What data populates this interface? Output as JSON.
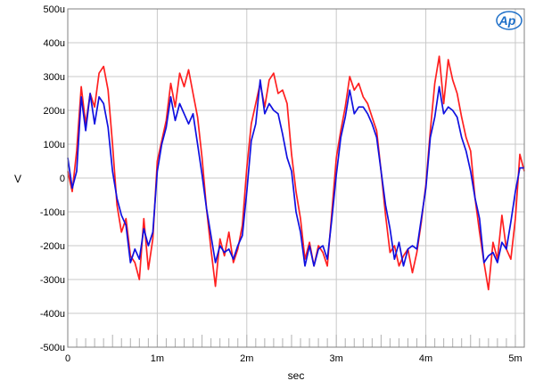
{
  "chart_data": {
    "type": "line",
    "title": "",
    "xlabel": "sec",
    "ylabel": "V",
    "xlim": [
      0,
      0.0051
    ],
    "ylim": [
      -0.0005,
      0.0005
    ],
    "grid": true,
    "logo": "Ap",
    "x_ticks": [
      {
        "value": 0,
        "label": "0"
      },
      {
        "value": 0.001,
        "label": "1m"
      },
      {
        "value": 0.002,
        "label": "2m"
      },
      {
        "value": 0.003,
        "label": "3m"
      },
      {
        "value": 0.004,
        "label": "4m"
      },
      {
        "value": 0.005,
        "label": "5m"
      }
    ],
    "y_ticks": [
      {
        "value": 0.0005,
        "label": "500u"
      },
      {
        "value": 0.0004,
        "label": "400u"
      },
      {
        "value": 0.0003,
        "label": "300u"
      },
      {
        "value": 0.0002,
        "label": "200u"
      },
      {
        "value": 0.0001,
        "label": "100u"
      },
      {
        "value": 0,
        "label": "0"
      },
      {
        "value": -0.0001,
        "label": "-100u"
      },
      {
        "value": -0.0002,
        "label": "-200u"
      },
      {
        "value": -0.0003,
        "label": "-300u"
      },
      {
        "value": -0.0004,
        "label": "-400u"
      },
      {
        "value": -0.0005,
        "label": "-500u"
      }
    ],
    "series": [
      {
        "color": "#ff2020",
        "x": [
          0,
          5e-05,
          0.0001,
          0.00015,
          0.0002,
          0.00025,
          0.0003,
          0.00035,
          0.0004,
          0.00045,
          0.0005,
          0.00055,
          0.0006,
          0.00065,
          0.0007,
          0.00075,
          0.0008,
          0.00085,
          0.0009,
          0.00095,
          0.001,
          0.00105,
          0.0011,
          0.00115,
          0.0012,
          0.00125,
          0.0013,
          0.00135,
          0.0014,
          0.00145,
          0.0015,
          0.00155,
          0.0016,
          0.00165,
          0.0017,
          0.00175,
          0.0018,
          0.00185,
          0.0019,
          0.00195,
          0.002,
          0.00205,
          0.0021,
          0.00215,
          0.0022,
          0.00225,
          0.0023,
          0.00235,
          0.0024,
          0.00245,
          0.0025,
          0.00255,
          0.0026,
          0.00265,
          0.0027,
          0.00275,
          0.0028,
          0.00285,
          0.0029,
          0.00295,
          0.003,
          0.00305,
          0.0031,
          0.00315,
          0.0032,
          0.00325,
          0.0033,
          0.00335,
          0.0034,
          0.00345,
          0.0035,
          0.00355,
          0.0036,
          0.00365,
          0.0037,
          0.00375,
          0.0038,
          0.00385,
          0.0039,
          0.00395,
          0.004,
          0.00405,
          0.0041,
          0.00415,
          0.0042,
          0.00425,
          0.0043,
          0.00435,
          0.0044,
          0.00445,
          0.0045,
          0.00455,
          0.0046,
          0.00465,
          0.0047,
          0.00475,
          0.0048,
          0.00485,
          0.0049,
          0.00495,
          0.005,
          0.00505,
          0.0051
        ],
        "y": [
          2e-05,
          -4e-05,
          8e-05,
          0.00027,
          0.00016,
          0.00025,
          0.00021,
          0.00031,
          0.00033,
          0.00026,
          0.0001,
          -8e-05,
          -0.00016,
          -0.00012,
          -0.00023,
          -0.00025,
          -0.0003,
          -0.00012,
          -0.00027,
          -0.00018,
          5e-05,
          0.00011,
          0.00017,
          0.00028,
          0.00021,
          0.00031,
          0.00027,
          0.00032,
          0.00025,
          0.00018,
          6e-05,
          -9e-05,
          -0.00021,
          -0.00032,
          -0.00018,
          -0.00023,
          -0.00016,
          -0.00025,
          -0.00021,
          -0.00014,
          3e-05,
          0.00016,
          0.00022,
          0.00028,
          0.00021,
          0.00029,
          0.00031,
          0.00025,
          0.00026,
          0.00022,
          7e-05,
          -4e-05,
          -0.00012,
          -0.00024,
          -0.00019,
          -0.00026,
          -0.0002,
          -0.00022,
          -0.00026,
          -0.0001,
          6e-05,
          0.00014,
          0.00021,
          0.0003,
          0.00026,
          0.00028,
          0.00024,
          0.00022,
          0.00018,
          0.00014,
          2e-05,
          -0.00011,
          -0.00022,
          -0.0002,
          -0.00026,
          -0.00023,
          -0.00021,
          -0.00028,
          -0.00022,
          -0.00013,
          -2e-05,
          0.00014,
          0.00028,
          0.00036,
          0.00022,
          0.00035,
          0.00029,
          0.00025,
          0.00018,
          0.00012,
          8e-05,
          -6e-05,
          -0.00016,
          -0.00025,
          -0.00033,
          -0.00019,
          -0.00024,
          -0.00011,
          -0.00021,
          -0.00024,
          -0.00012,
          7e-05,
          2e-05
        ]
      },
      {
        "color": "#1010e0",
        "x": [
          0,
          5e-05,
          0.0001,
          0.00015,
          0.0002,
          0.00025,
          0.0003,
          0.00035,
          0.0004,
          0.00045,
          0.0005,
          0.00055,
          0.0006,
          0.00065,
          0.0007,
          0.00075,
          0.0008,
          0.00085,
          0.0009,
          0.00095,
          0.001,
          0.00105,
          0.0011,
          0.00115,
          0.0012,
          0.00125,
          0.0013,
          0.00135,
          0.0014,
          0.00145,
          0.0015,
          0.00155,
          0.0016,
          0.00165,
          0.0017,
          0.00175,
          0.0018,
          0.00185,
          0.0019,
          0.00195,
          0.002,
          0.00205,
          0.0021,
          0.00215,
          0.0022,
          0.00225,
          0.0023,
          0.00235,
          0.0024,
          0.00245,
          0.0025,
          0.00255,
          0.0026,
          0.00265,
          0.0027,
          0.00275,
          0.0028,
          0.00285,
          0.0029,
          0.00295,
          0.003,
          0.00305,
          0.0031,
          0.00315,
          0.0032,
          0.00325,
          0.0033,
          0.00335,
          0.0034,
          0.00345,
          0.0035,
          0.00355,
          0.0036,
          0.00365,
          0.0037,
          0.00375,
          0.0038,
          0.00385,
          0.0039,
          0.00395,
          0.004,
          0.00405,
          0.0041,
          0.00415,
          0.0042,
          0.00425,
          0.0043,
          0.00435,
          0.0044,
          0.00445,
          0.0045,
          0.00455,
          0.0046,
          0.00465,
          0.0047,
          0.00475,
          0.0048,
          0.00485,
          0.0049,
          0.00495,
          0.005,
          0.00505,
          0.0051
        ],
        "y": [
          6e-05,
          -3e-05,
          2e-05,
          0.00024,
          0.00014,
          0.00025,
          0.00016,
          0.00024,
          0.00022,
          0.00015,
          2e-05,
          -6e-05,
          -0.00011,
          -0.00014,
          -0.00025,
          -0.00021,
          -0.00024,
          -0.00015,
          -0.0002,
          -0.00016,
          2e-05,
          0.0001,
          0.00015,
          0.00024,
          0.00017,
          0.00022,
          0.00019,
          0.00016,
          0.00019,
          0.0001,
          1e-05,
          -9e-05,
          -0.00017,
          -0.00025,
          -0.0002,
          -0.00022,
          -0.00021,
          -0.00024,
          -0.0002,
          -0.00017,
          -4e-05,
          0.00011,
          0.00016,
          0.00029,
          0.00019,
          0.00022,
          0.0002,
          0.00019,
          0.00013,
          6e-05,
          2e-05,
          -0.0001,
          -0.00016,
          -0.00026,
          -0.0002,
          -0.00026,
          -0.00021,
          -0.0002,
          -0.00024,
          -0.00012,
          1e-05,
          0.00012,
          0.00018,
          0.00026,
          0.00019,
          0.00021,
          0.00021,
          0.00019,
          0.00016,
          0.00012,
          2e-05,
          -8e-05,
          -0.00015,
          -0.00024,
          -0.00019,
          -0.00026,
          -0.00021,
          -0.0002,
          -0.00021,
          -0.00012,
          -3e-05,
          0.00012,
          0.00018,
          0.00027,
          0.00019,
          0.00021,
          0.0002,
          0.00018,
          0.00012,
          8e-05,
          2e-05,
          -6e-05,
          -0.00012,
          -0.00025,
          -0.00023,
          -0.00022,
          -0.00025,
          -0.00019,
          -0.00021,
          -0.00013,
          -4e-05,
          3e-05,
          3e-05
        ]
      }
    ]
  }
}
